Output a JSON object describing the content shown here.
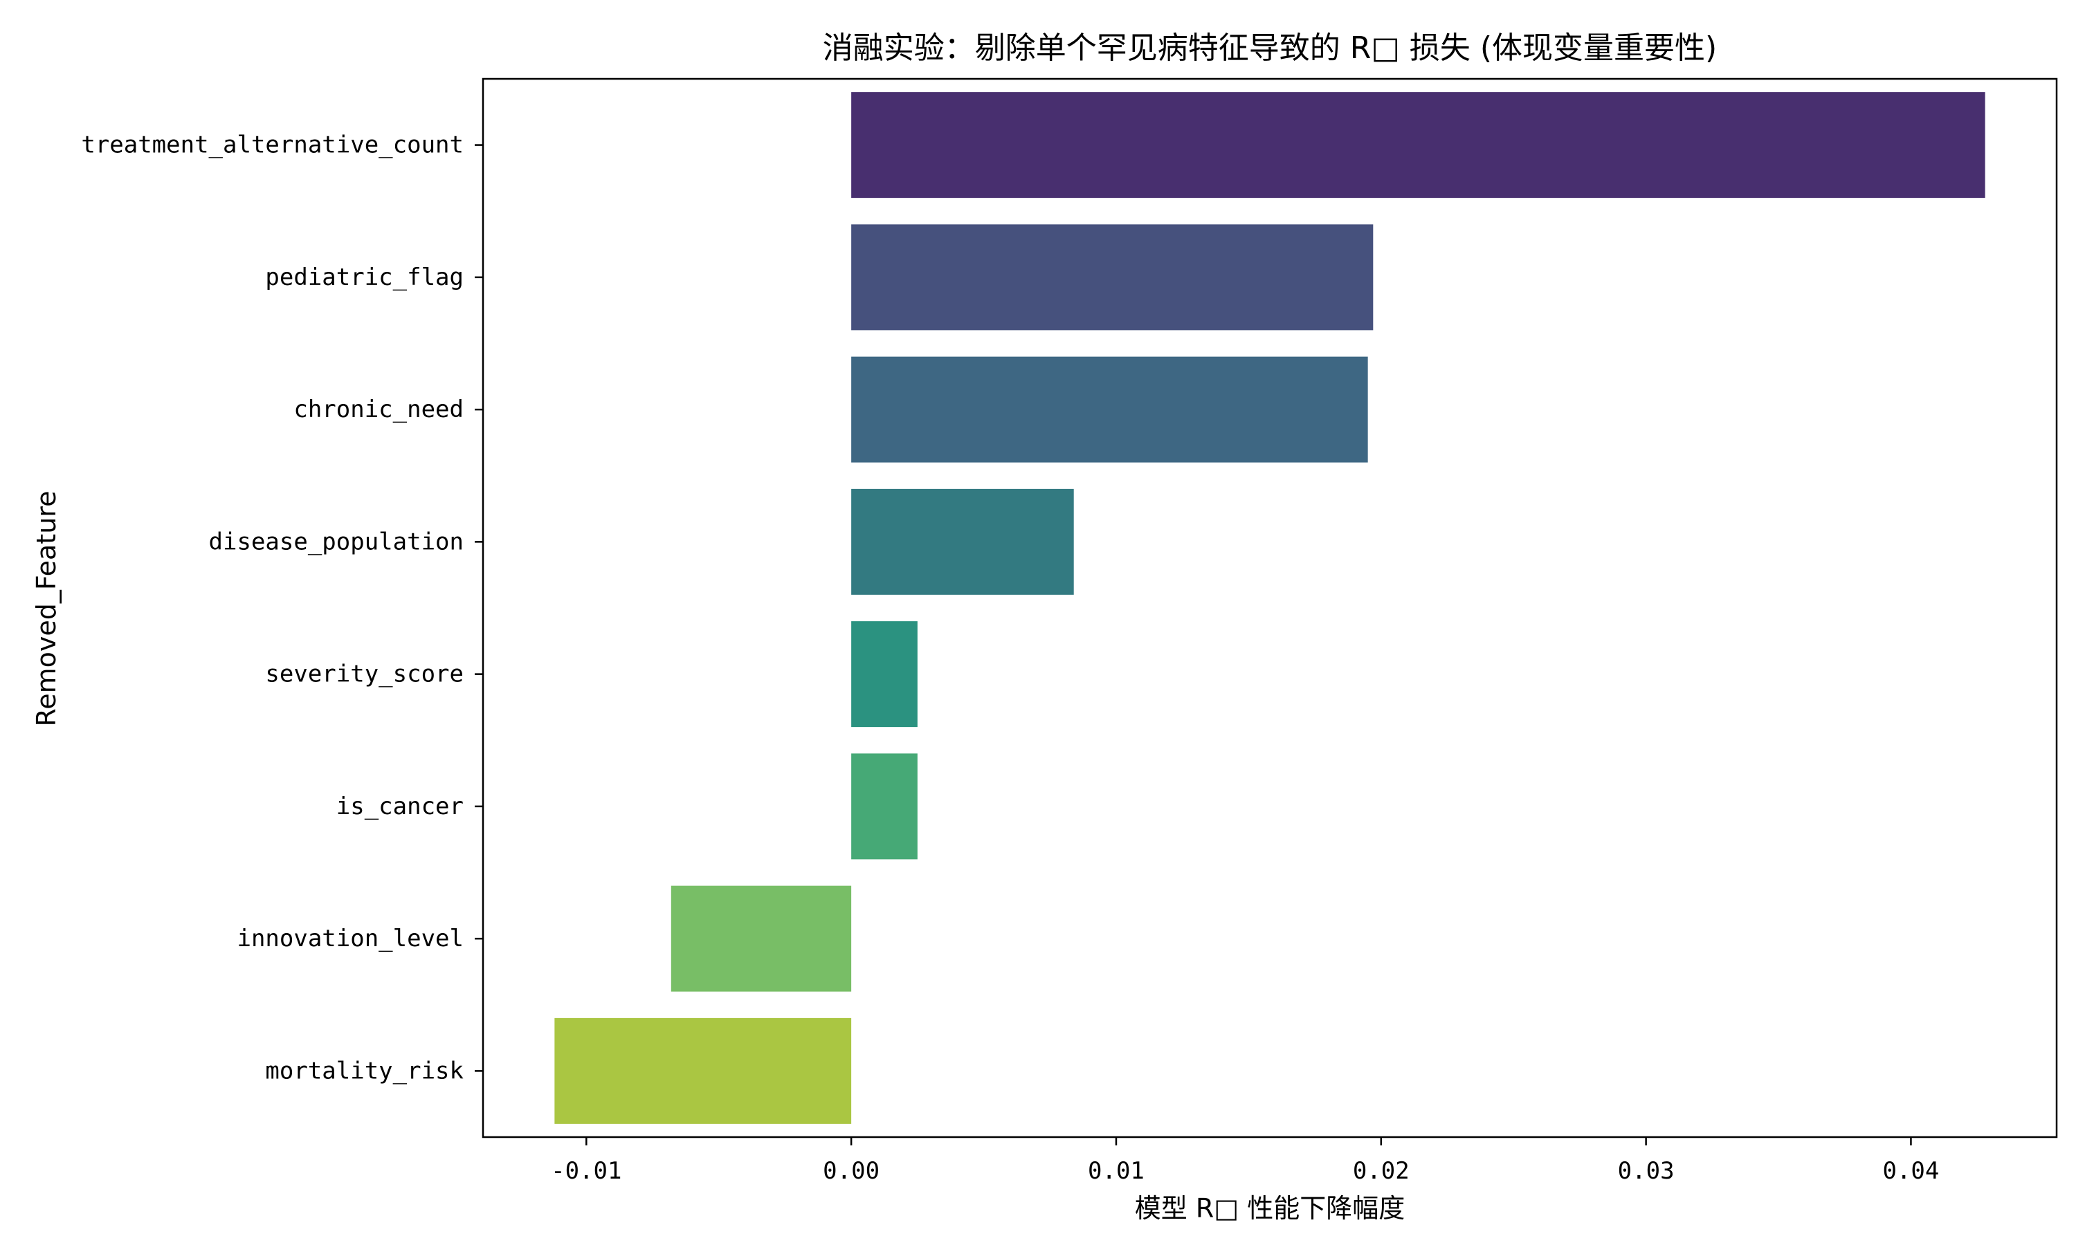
{
  "chart_data": {
    "type": "bar",
    "orientation": "horizontal",
    "title": "消融实验：剔除单个罕见病特征导致的 R□ 损失 (体现变量重要性)",
    "xlabel": "模型 R□ 性能下降幅度",
    "ylabel": "Removed_Feature",
    "categories": [
      "treatment_alternative_count",
      "pediatric_flag",
      "chronic_need",
      "disease_population",
      "severity_score",
      "is_cancer",
      "innovation_level",
      "mortality_risk"
    ],
    "values": [
      0.0428,
      0.0197,
      0.0195,
      0.0084,
      0.0025,
      0.0025,
      -0.0068,
      -0.0112
    ],
    "colors": [
      "#482f6f",
      "#46517d",
      "#3e6783",
      "#337a81",
      "#2b9280",
      "#46a976",
      "#78be66",
      "#aac642"
    ],
    "xlim": [
      -0.0139,
      0.0455
    ],
    "xticks": [
      -0.01,
      0.0,
      0.01,
      0.02,
      0.03,
      0.04
    ],
    "xtick_labels": [
      "-0.01",
      "0.00",
      "0.01",
      "0.02",
      "0.03",
      "0.04"
    ],
    "grid": false,
    "legend": "none"
  }
}
